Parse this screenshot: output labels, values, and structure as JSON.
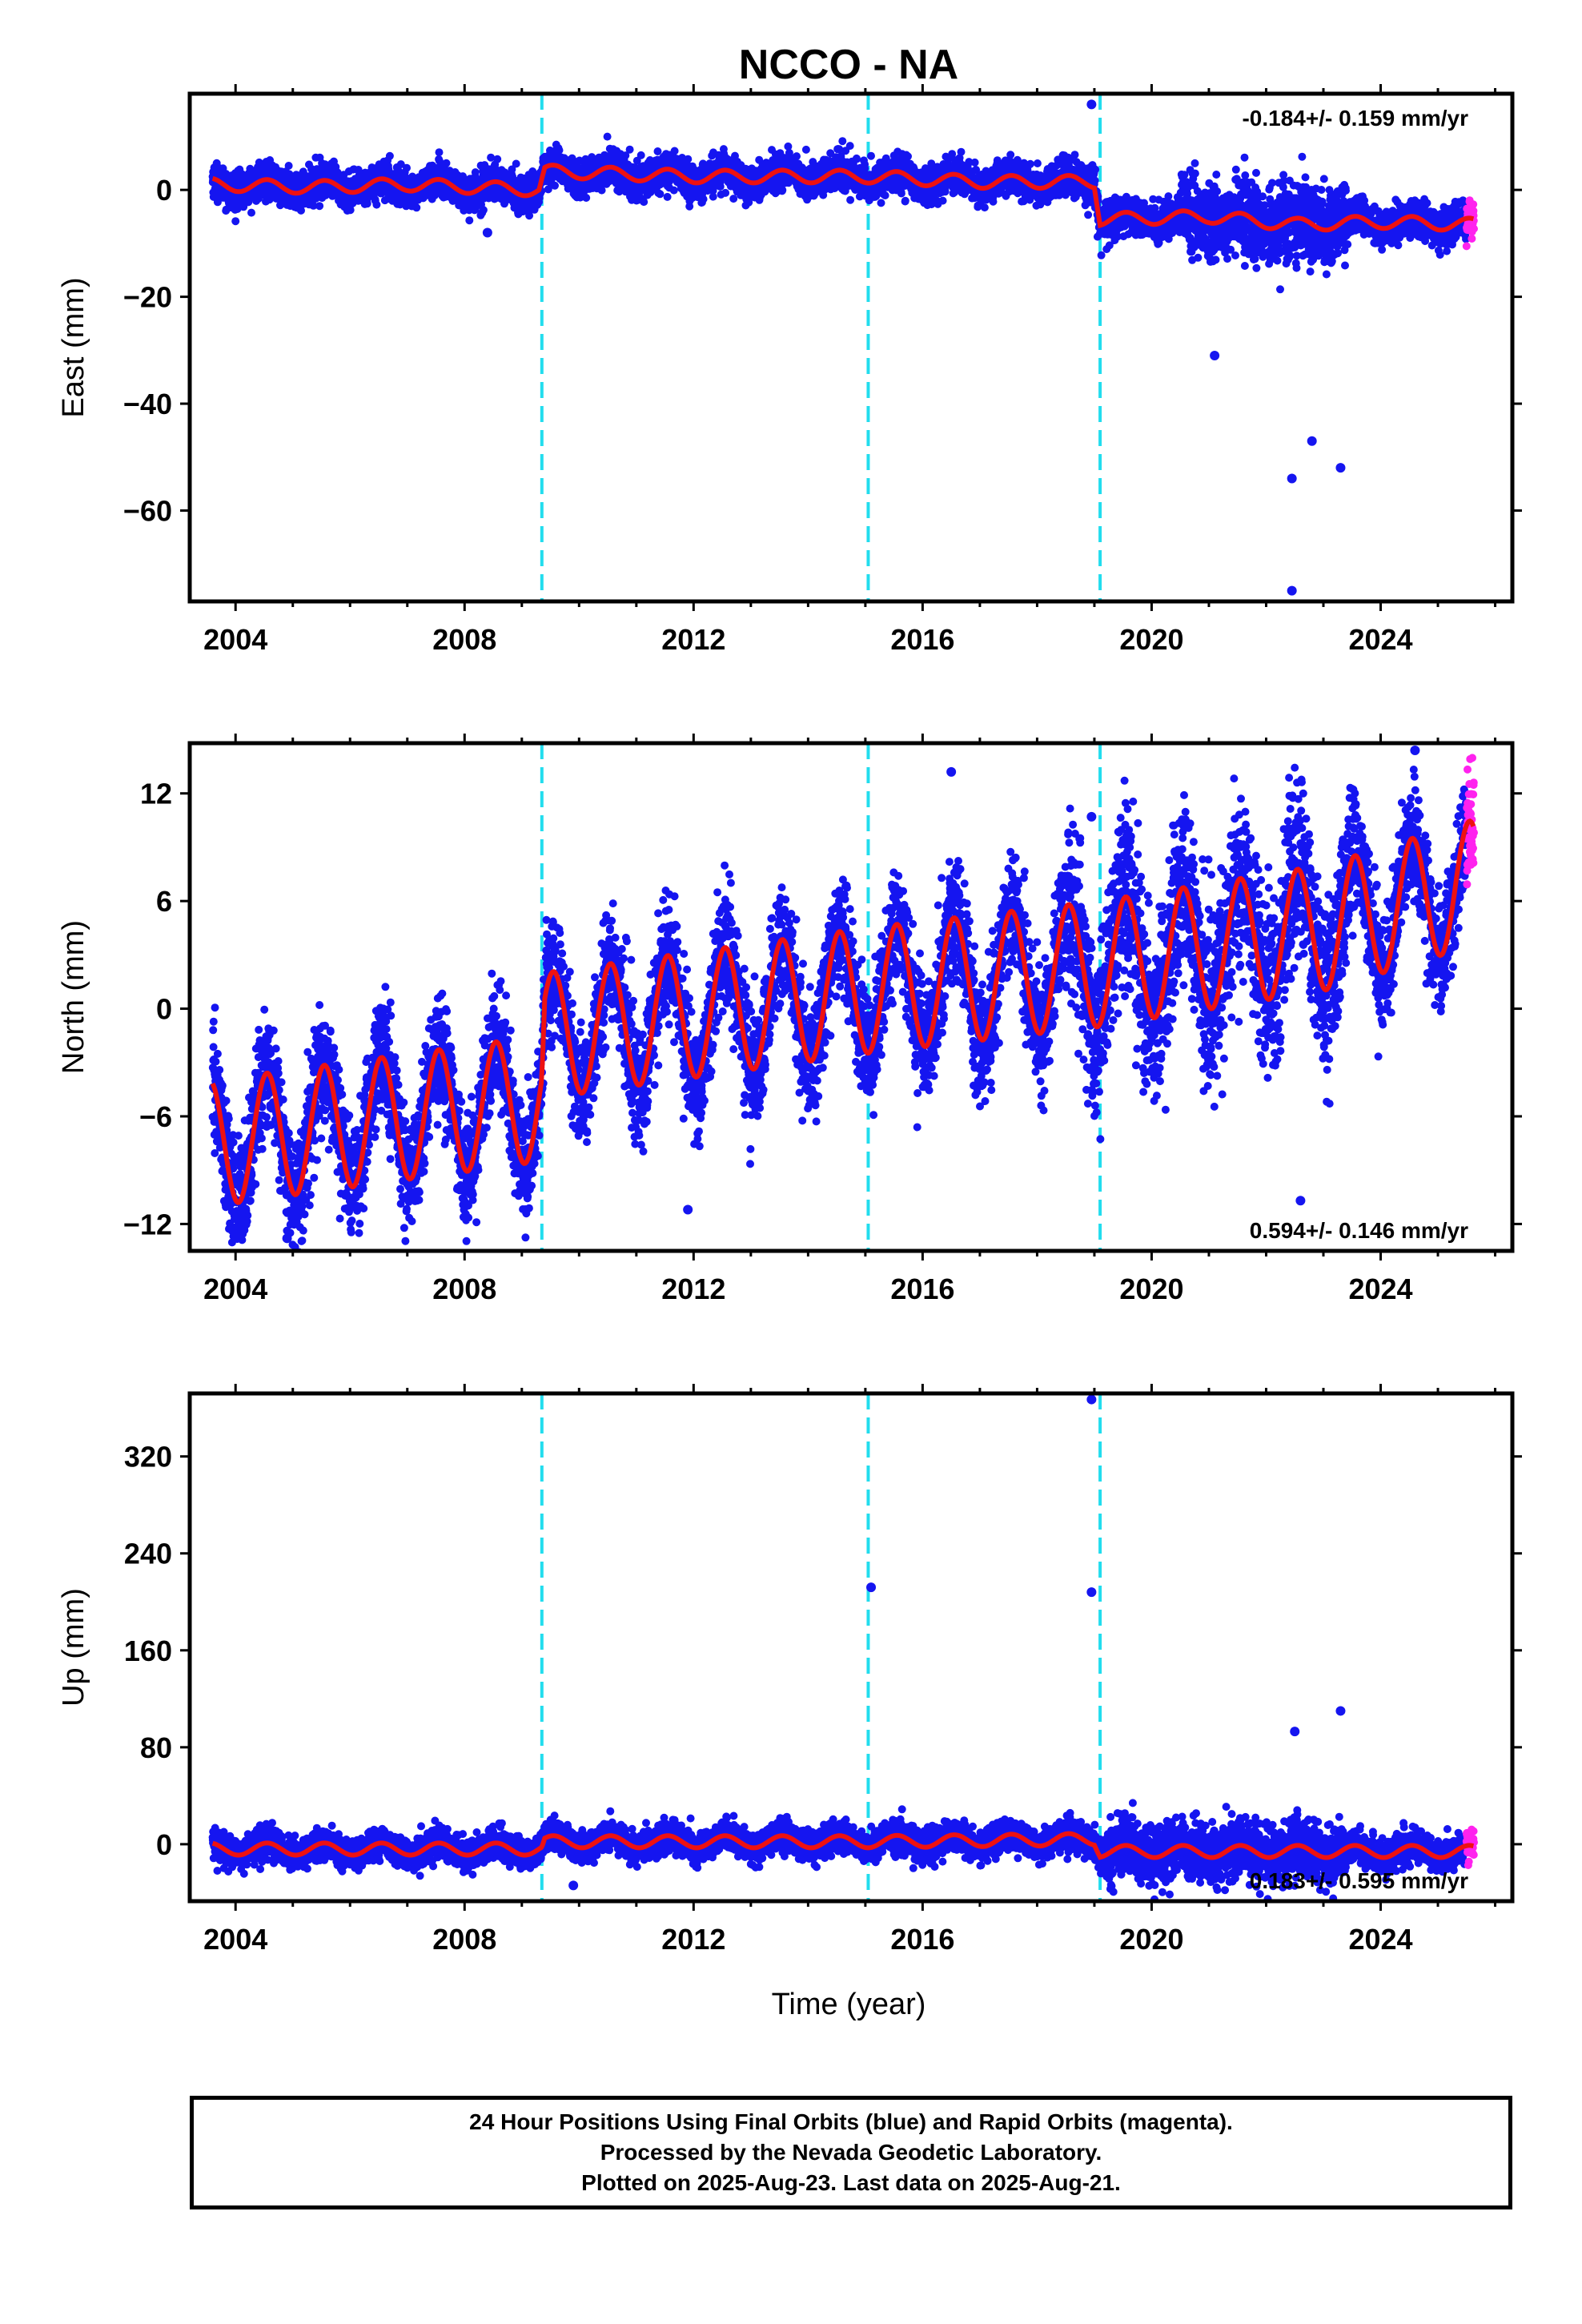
{
  "colors": {
    "final_orbits": "#1515f0",
    "rapid_orbits": "#ff22ee",
    "model": "#ee1111",
    "offsets": "#22ddee",
    "frame": "#000000"
  },
  "chart_data": {
    "type": "scatter",
    "title": "NCCO - NA",
    "xlabel": "Time (year)",
    "xlim": [
      2003.2,
      2026.3
    ],
    "x_ticks": [
      "2004",
      "2008",
      "2012",
      "2016",
      "2020",
      "2024"
    ],
    "x_tick_values": [
      2004,
      2008,
      2012,
      2016,
      2020,
      2024
    ],
    "offset_lines": [
      2009.35,
      2015.05,
      2019.1
    ],
    "grid": false,
    "panels": [
      {
        "name": "East",
        "ylabel": "East (mm)",
        "ylim": [
          -77,
          18
        ],
        "y_ticks": [
          "0",
          "−20",
          "−40",
          "−60"
        ],
        "y_tick_values": [
          0,
          -20,
          -40,
          -60
        ],
        "rate": "-0.184+/- 0.159 mm/yr",
        "rate_position": "top-right",
        "model": {
          "x": [
            2003.6,
            2005.3,
            2007.0,
            2009.3,
            2009.4,
            2012.0,
            2015.0,
            2017.0,
            2019.0,
            2019.1,
            2021.0,
            2022.5,
            2024.0,
            2025.6
          ],
          "y": [
            1.0,
            0.5,
            1.0,
            0.0,
            3.5,
            2.5,
            2.5,
            1.5,
            1.5,
            -5.5,
            -5.0,
            -6.5,
            -6.0,
            -6.5
          ],
          "seasonal_amplitude": 1.2
        },
        "scatter": {
          "final_orbits_range": [
            2003.6,
            2025.5
          ],
          "rapid_orbits_range": [
            2025.5,
            2025.63
          ],
          "scatter_std_mm": 1.6
        },
        "notable_outliers": [
          [
            2018.95,
            16
          ],
          [
            2022.45,
            -75
          ],
          [
            2022.45,
            -54
          ],
          [
            2023.3,
            -52
          ],
          [
            2022.8,
            -47
          ],
          [
            2021.1,
            -31
          ],
          [
            2008.4,
            -8
          ]
        ]
      },
      {
        "name": "North",
        "ylabel": "North (mm)",
        "ylim": [
          -13.5,
          14.8
        ],
        "y_ticks": [
          "12",
          "6",
          "0",
          "−6",
          "−12"
        ],
        "y_tick_values": [
          12,
          6,
          0,
          -6,
          -12
        ],
        "rate": "0.594+/- 0.146 mm/yr",
        "rate_position": "bottom-right",
        "model": {
          "x": [
            2003.6,
            2009.35,
            2009.4,
            2015.0,
            2019.1,
            2023.0,
            2025.6
          ],
          "y": [
            -7.5,
            -5.0,
            -1.5,
            1.0,
            2.5,
            4.5,
            7.0
          ],
          "seasonal_amplitude": 3.5
        },
        "scatter": {
          "final_orbits_range": [
            2003.6,
            2025.5
          ],
          "rapid_orbits_range": [
            2025.5,
            2025.63
          ],
          "scatter_std_mm": 1.6
        },
        "notable_outliers": [
          [
            2004.9,
            -12.8
          ],
          [
            2011.9,
            -11.2
          ],
          [
            2016.5,
            13.2
          ],
          [
            2022.6,
            -10.7
          ],
          [
            2024.6,
            14.4
          ],
          [
            2018.95,
            10.7
          ]
        ]
      },
      {
        "name": "Up",
        "ylabel": "Up (mm)",
        "ylim": [
          -47,
          372
        ],
        "y_ticks": [
          "320",
          "240",
          "160",
          "80",
          "0"
        ],
        "y_tick_values": [
          320,
          240,
          160,
          80,
          0
        ],
        "rate": "0.183+/- 0.595 mm/yr",
        "rate_position": "bottom-right",
        "model": {
          "x": [
            2003.6,
            2009.35,
            2009.4,
            2015.0,
            2019.0,
            2019.1,
            2023.0,
            2025.6
          ],
          "y": [
            -4.0,
            -4.0,
            2.0,
            2.0,
            4.0,
            -6.0,
            -6.0,
            -6.0
          ],
          "seasonal_amplitude": 5.0
        },
        "scatter": {
          "final_orbits_range": [
            2003.6,
            2025.5
          ],
          "rapid_orbits_range": [
            2025.5,
            2025.63
          ],
          "scatter_std_mm": 6.0
        },
        "notable_outliers": [
          [
            2018.95,
            367
          ],
          [
            2015.1,
            212
          ],
          [
            2018.95,
            208
          ],
          [
            2023.3,
            110
          ],
          [
            2022.5,
            93
          ],
          [
            2009.9,
            -34
          ]
        ]
      }
    ]
  },
  "footer": {
    "line1": "24 Hour Positions Using Final Orbits (blue) and Rapid Orbits (magenta).",
    "line2": "Processed by the Nevada Geodetic Laboratory.",
    "line3": "Plotted on 2025-Aug-23. Last data on 2025-Aug-21."
  }
}
